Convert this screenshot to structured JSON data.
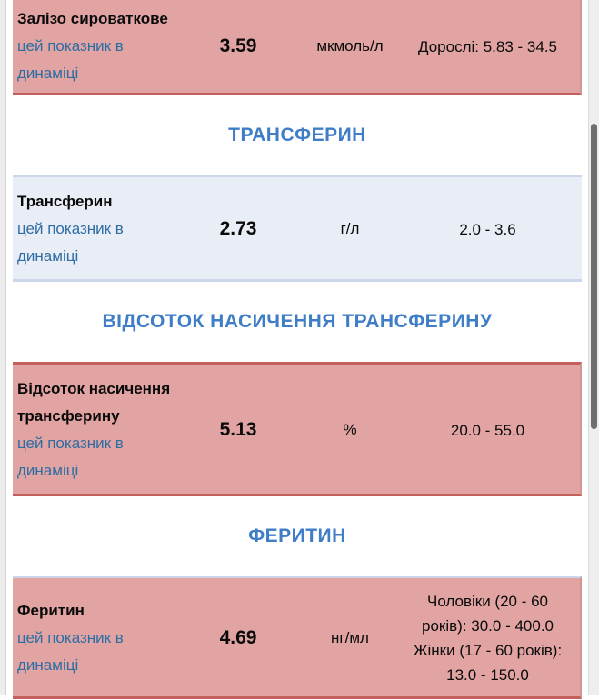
{
  "theme": {
    "abnormal_row_bg": "#e1a4a2",
    "abnormal_row_border": "#c4605b",
    "normal_row_bg": "#e9edf6",
    "normal_row_border": "#ccd6ea",
    "section_header_color": "#3f7ec7",
    "link_color": "#2e6da4",
    "scrollbar_thumb_color": "#6e6e6e"
  },
  "section_headers": [
    "ТРАНСФЕРИН",
    "ВІДСОТОК НАСИЧЕННЯ ТРАНСФЕРИНУ",
    "ФЕРИТИН"
  ],
  "rows": [
    {
      "name": "Залізо сироваткове",
      "trend_label": "цей показник в динаміці",
      "value": "3.59",
      "unit": "мкмоль/л",
      "status": "abnormal",
      "reference": [
        "Дорослі: 5.83 - 34.5"
      ]
    },
    {
      "name": "Трансферин",
      "trend_label": "цей показник в динаміці",
      "value": "2.73",
      "unit": "г/л",
      "status": "normal",
      "reference": [
        "2.0 - 3.6"
      ]
    },
    {
      "name": "Відсоток насичення трансферину",
      "trend_label": "цей показник в динаміці",
      "value": "5.13",
      "unit": "%",
      "status": "abnormal",
      "reference": [
        "20.0 - 55.0"
      ]
    },
    {
      "name": "Феритин",
      "trend_label": "цей показник в динаміці",
      "value": "4.69",
      "unit": "нг/мл",
      "status": "abnormal",
      "reference": [
        "Чоловіки (20 - 60 років): 30.0 - 400.0",
        "Жінки (17 - 60 років): 13.0 - 150.0"
      ]
    }
  ]
}
